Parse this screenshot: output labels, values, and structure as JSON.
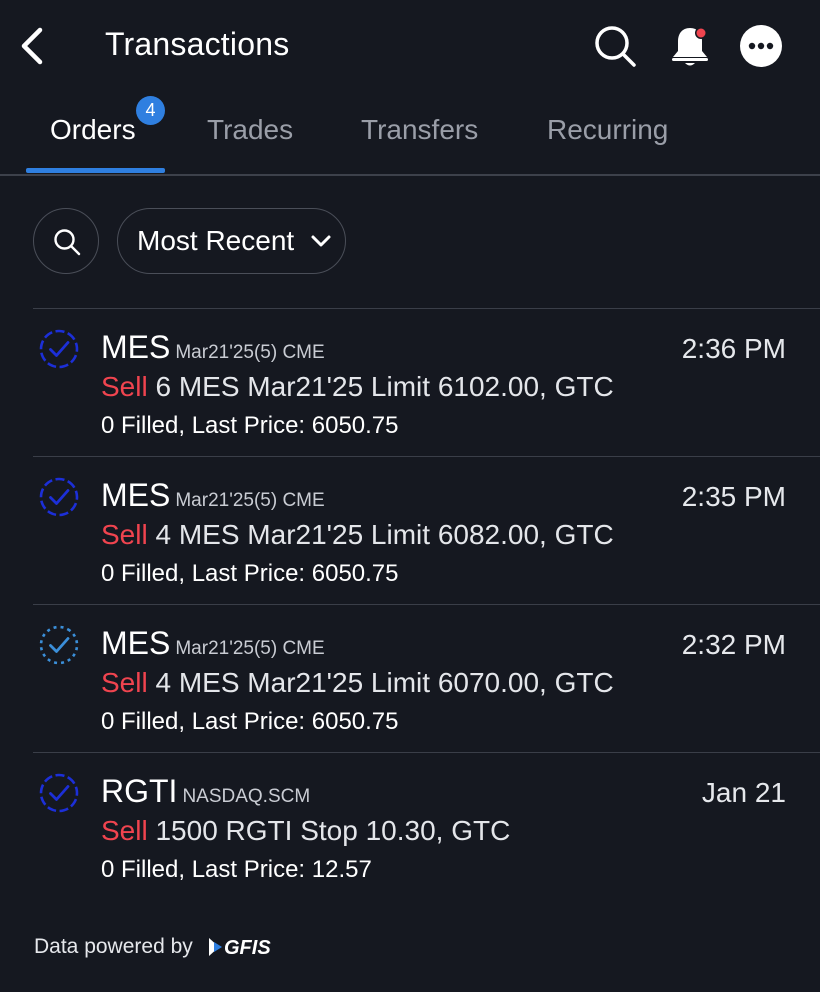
{
  "header": {
    "title": "Transactions",
    "back_icon": "chevron-left-icon",
    "search_icon": "search-icon",
    "bell_icon": "bell-icon",
    "more_icon": "more-horizontal-icon",
    "notification_dot_color": "#f0444f"
  },
  "tabs": [
    {
      "label": "Orders",
      "active": true,
      "badge": "4"
    },
    {
      "label": "Trades",
      "active": false
    },
    {
      "label": "Transfers",
      "active": false
    },
    {
      "label": "Recurring",
      "active": false
    }
  ],
  "filters": {
    "search_icon": "search-icon",
    "sort_label": "Most Recent",
    "sort_icon": "chevron-down-icon"
  },
  "orders": [
    {
      "symbol": "MES",
      "meta": "Mar21'25(5) CME",
      "time": "2:36 PM",
      "side": "Sell",
      "description": "6 MES Mar21'25 Limit 6102.00, GTC",
      "fill": "0 Filled, Last Price: 6050.75",
      "status_icon": "order-working-icon"
    },
    {
      "symbol": "MES",
      "meta": "Mar21'25(5) CME",
      "time": "2:35 PM",
      "side": "Sell",
      "description": "4 MES Mar21'25 Limit 6082.00, GTC",
      "fill": "0 Filled, Last Price: 6050.75",
      "status_icon": "order-working-icon"
    },
    {
      "symbol": "MES",
      "meta": "Mar21'25(5) CME",
      "time": "2:32 PM",
      "side": "Sell",
      "description": "4 MES Mar21'25 Limit 6070.00, GTC",
      "fill": "0 Filled, Last Price: 6050.75",
      "status_icon": "order-pending-icon"
    },
    {
      "symbol": "RGTI",
      "meta": "NASDAQ.SCM",
      "time": "Jan 21",
      "side": "Sell",
      "description": "1500 RGTI Stop 10.30, GTC",
      "fill": "0 Filled, Last Price: 12.57",
      "status_icon": "order-working-icon"
    }
  ],
  "footer": {
    "text": "Data powered by",
    "logo_text": "GFIS"
  },
  "colors": {
    "background": "#151820",
    "accent": "#2f7fe0",
    "sell": "#f0444f",
    "status_working": "#1c2fd8",
    "status_pending": "#3b8fd9"
  }
}
